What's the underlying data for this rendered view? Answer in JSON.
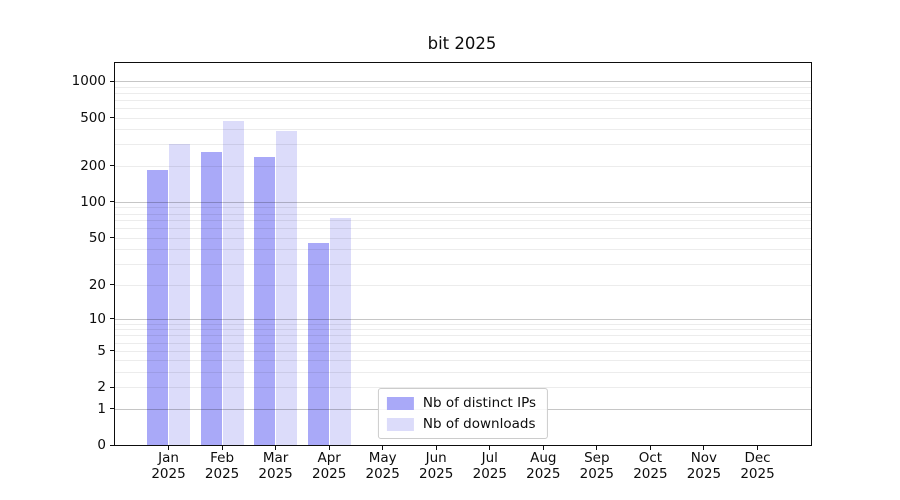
{
  "chart_data": {
    "type": "bar",
    "title": "bit 2025",
    "categories": [
      {
        "month": "Jan",
        "year": "2025"
      },
      {
        "month": "Feb",
        "year": "2025"
      },
      {
        "month": "Mar",
        "year": "2025"
      },
      {
        "month": "Apr",
        "year": "2025"
      },
      {
        "month": "May",
        "year": "2025"
      },
      {
        "month": "Jun",
        "year": "2025"
      },
      {
        "month": "Jul",
        "year": "2025"
      },
      {
        "month": "Aug",
        "year": "2025"
      },
      {
        "month": "Sep",
        "year": "2025"
      },
      {
        "month": "Oct",
        "year": "2025"
      },
      {
        "month": "Nov",
        "year": "2025"
      },
      {
        "month": "Dec",
        "year": "2025"
      }
    ],
    "series": [
      {
        "name": "Nb of distinct IPs",
        "color": "#a9a9f8",
        "values": [
          183,
          260,
          235,
          45,
          null,
          null,
          null,
          null,
          null,
          null,
          null,
          null
        ]
      },
      {
        "name": "Nb of downloads",
        "color": "#dcdcfa",
        "values": [
          300,
          465,
          390,
          73,
          null,
          null,
          null,
          null,
          null,
          null,
          null,
          null
        ]
      }
    ],
    "yscale": "log1p",
    "ylim": [
      0,
      1408
    ],
    "yticks": [
      0,
      1,
      2,
      5,
      10,
      20,
      50,
      100,
      200,
      500,
      1000
    ],
    "grid": {
      "major_color": "#c6c6c6",
      "minor_color": "#ececec",
      "orientation": "horizontal"
    },
    "legend_position": "lower center"
  }
}
